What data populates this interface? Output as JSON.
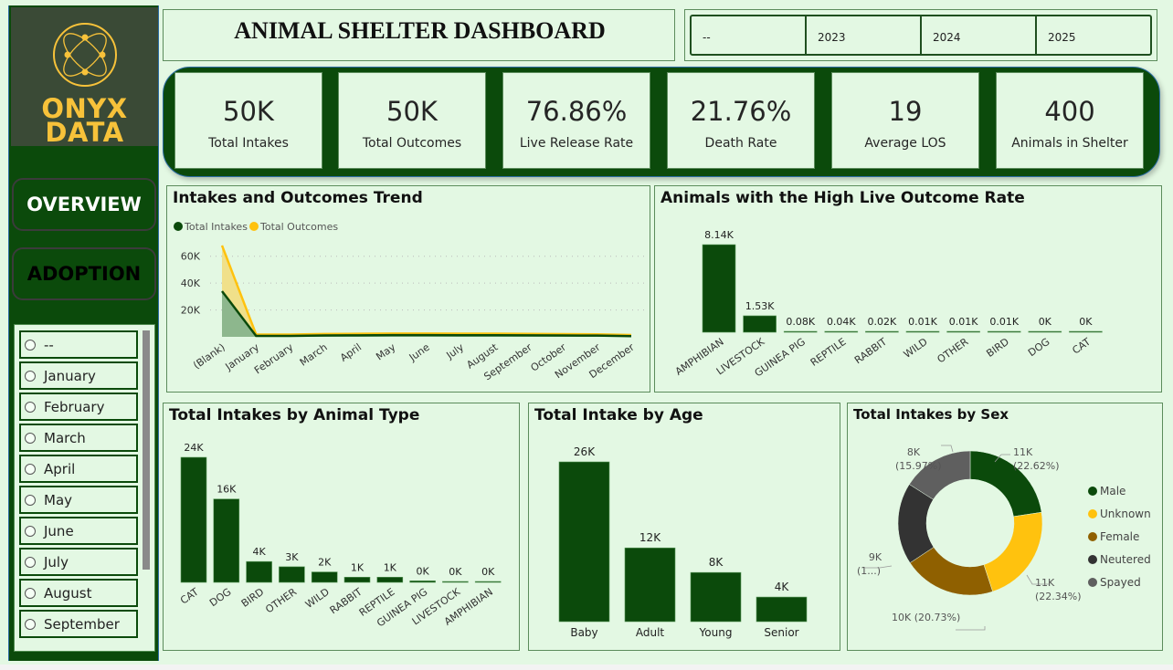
{
  "colors": {
    "primary_green": "#0b4a0b",
    "accent_yellow": "#ffc20e",
    "background": "#e3f8e3",
    "logo_gold": "#f7c23a",
    "female_brown": "#8f6000",
    "neutered_dark": "#333333",
    "spayed_gray": "#5f5f5f"
  },
  "sidebar": {
    "logo": {
      "icon": "onyx-globe-icon",
      "line1": "ONYX",
      "line2": "DATA"
    },
    "nav": [
      {
        "label": "OVERVIEW",
        "active": true
      },
      {
        "label": "ADOPTION",
        "active": false
      }
    ],
    "month_slicer": {
      "items": [
        "--",
        "January",
        "February",
        "March",
        "April",
        "May",
        "June",
        "July",
        "August",
        "September"
      ]
    }
  },
  "header": {
    "title": "ANIMAL SHELTER DASHBOARD",
    "year_slicer": [
      "--",
      "2023",
      "2024",
      "2025"
    ]
  },
  "kpis": [
    {
      "value": "50K",
      "label": "Total Intakes"
    },
    {
      "value": "50K",
      "label": "Total Outcomes"
    },
    {
      "value": "76.86%",
      "label": "Live Release Rate"
    },
    {
      "value": "21.76%",
      "label": "Death Rate"
    },
    {
      "value": "19",
      "label": "Average LOS"
    },
    {
      "value": "400",
      "label": "Animals in Shelter"
    }
  ],
  "chart_data": [
    {
      "id": "trend",
      "type": "area",
      "stacked": true,
      "title": "Intakes and Outcomes Trend",
      "legend_position": "top-left",
      "categories": [
        "(Blank)",
        "January",
        "February",
        "March",
        "April",
        "May",
        "June",
        "July",
        "August",
        "September",
        "October",
        "November",
        "December"
      ],
      "series": [
        {
          "name": "Total Intakes",
          "color": "#0b4a0b",
          "values": [
            34000,
            700,
            700,
            1000,
            1100,
            1300,
            1300,
            1200,
            1200,
            1100,
            1000,
            900,
            500
          ]
        },
        {
          "name": "Total Outcomes",
          "color": "#ffc20e",
          "values": [
            34000,
            1000,
            1000,
            1100,
            1200,
            1200,
            1200,
            1200,
            1200,
            1100,
            1000,
            1000,
            900
          ]
        }
      ],
      "yticks": [
        "20K",
        "40K",
        "60K"
      ],
      "ytick_values": [
        20000,
        40000,
        60000
      ],
      "ylim": [
        0,
        70000
      ],
      "grid": true
    },
    {
      "id": "live_outcome",
      "type": "bar",
      "title": "Animals with the High Live Outcome Rate",
      "categories": [
        "AMPHIBIAN",
        "LIVESTOCK",
        "GUINEA PIG",
        "REPTILE",
        "RABBIT",
        "WILD",
        "OTHER",
        "BIRD",
        "DOG",
        "CAT"
      ],
      "values": [
        8140,
        1530,
        80,
        40,
        20,
        10,
        10,
        10,
        0,
        0
      ],
      "labels": [
        "8.14K",
        "1.53K",
        "0.08K",
        "0.04K",
        "0.02K",
        "0.01K",
        "0.01K",
        "0.01K",
        "0K",
        "0K"
      ],
      "ylim": [
        0,
        8140
      ]
    },
    {
      "id": "by_type",
      "type": "bar",
      "title": "Total Intakes by Animal Type",
      "categories": [
        "CAT",
        "DOG",
        "BIRD",
        "OTHER",
        "WILD",
        "RABBIT",
        "REPTILE",
        "GUINEA PIG",
        "LIVESTOCK",
        "AMPHIBIAN"
      ],
      "values": [
        24000,
        16000,
        4000,
        3000,
        2000,
        1000,
        1000,
        300,
        100,
        100
      ],
      "labels": [
        "24K",
        "16K",
        "4K",
        "3K",
        "2K",
        "1K",
        "1K",
        "0K",
        "0K",
        "0K"
      ],
      "ylim": [
        0,
        24000
      ]
    },
    {
      "id": "by_age",
      "type": "bar",
      "title": "Total Intake by Age",
      "categories": [
        "Baby",
        "Adult",
        "Young",
        "Senior"
      ],
      "values": [
        26000,
        12000,
        8000,
        4000
      ],
      "labels": [
        "26K",
        "12K",
        "8K",
        "4K"
      ],
      "ylim": [
        0,
        26000
      ]
    },
    {
      "id": "by_sex",
      "type": "pie",
      "donut": true,
      "title": "Total Intakes by Sex",
      "legend_position": "right",
      "slices": [
        {
          "name": "Male",
          "value": 11000,
          "percent": 22.62,
          "label": "11K (22.62%)",
          "color": "#0b4a0b"
        },
        {
          "name": "Unknown",
          "value": 11000,
          "percent": 22.34,
          "label": "11K (22.34%)",
          "color": "#ffc20e"
        },
        {
          "name": "Female",
          "value": 10000,
          "percent": 20.73,
          "label": "10K (20.73%)",
          "color": "#8f6000"
        },
        {
          "name": "Neutered",
          "value": 9000,
          "percent": 18.34,
          "label": "9K (1...)",
          "color": "#333333"
        },
        {
          "name": "Spayed",
          "value": 8000,
          "percent": 15.97,
          "label": "8K (15.97%)",
          "color": "#5f5f5f"
        }
      ]
    }
  ]
}
